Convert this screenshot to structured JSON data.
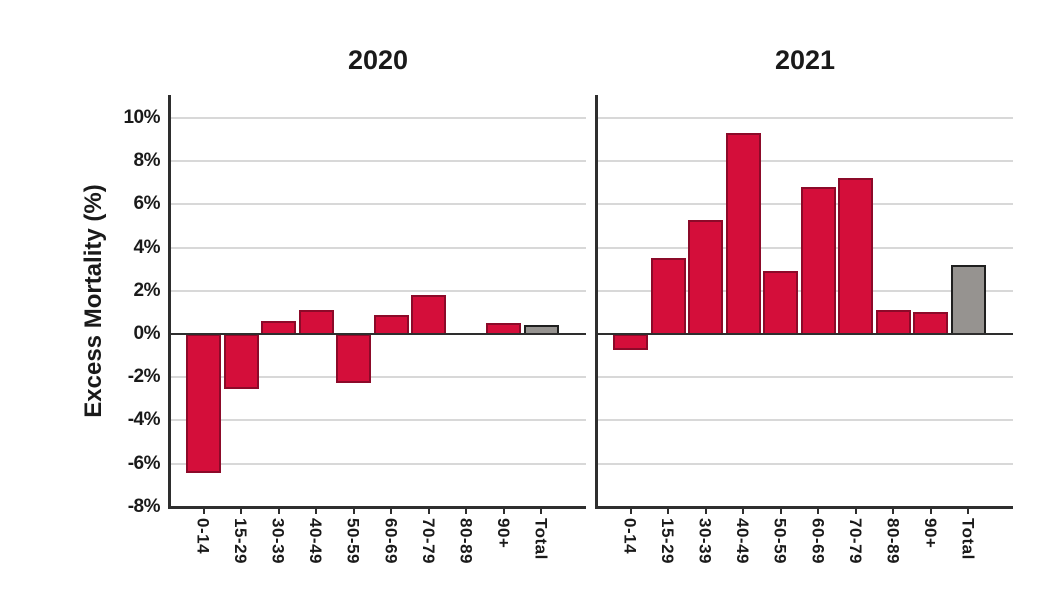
{
  "ylabel": "Excess Mortality (%)",
  "colors": {
    "background": "#ffffff",
    "bar_red": "#d40e3a",
    "bar_red_border": "#8c0a29",
    "bar_gray": "#969390",
    "bar_gray_border": "#1f1f1f",
    "gridline": "#d8d8d8",
    "axis": "#2e2e2e",
    "text": "#1a1a1a"
  },
  "chart_data": [
    {
      "type": "bar",
      "title": "2020",
      "categories": [
        "0-14",
        "15-29",
        "30-39",
        "40-49",
        "50-59",
        "60-69",
        "70-79",
        "80-89",
        "90+",
        "Total"
      ],
      "values": [
        -6.4,
        -2.5,
        0.6,
        1.1,
        -2.2,
        0.9,
        1.8,
        0,
        0.5,
        0.4
      ],
      "bar_roles": [
        "age",
        "age",
        "age",
        "age",
        "age",
        "age",
        "age",
        "age",
        "age",
        "total"
      ],
      "ylabel": "Excess Mortality (%)",
      "ylim": [
        -8,
        10
      ],
      "ytick_values": [
        10,
        8,
        6,
        4,
        2,
        0,
        -2,
        -4,
        -6,
        -8
      ],
      "yticklabels": [
        "10%",
        "8%",
        "6%",
        "4%",
        "2%",
        "0%",
        "-2%",
        "-4%",
        "-6%",
        "-8%"
      ],
      "grid": true,
      "legend": "none"
    },
    {
      "type": "bar",
      "title": "2021",
      "categories": [
        "0-14",
        "15-29",
        "30-39",
        "40-49",
        "50-59",
        "60-69",
        "70-79",
        "80-89",
        "90+",
        "Total"
      ],
      "values": [
        -0.7,
        3.5,
        5.3,
        9.3,
        2.9,
        6.8,
        7.2,
        1.1,
        1.0,
        3.2
      ],
      "bar_roles": [
        "age",
        "age",
        "age",
        "age",
        "age",
        "age",
        "age",
        "age",
        "age",
        "total"
      ],
      "ylabel": "Excess Mortality (%)",
      "ylim": [
        -8,
        10
      ],
      "ytick_values": [
        10,
        8,
        6,
        4,
        2,
        0,
        -2,
        -4,
        -6,
        -8
      ],
      "yticklabels": [
        "10%",
        "8%",
        "6%",
        "4%",
        "2%",
        "0%",
        "-2%",
        "-4%",
        "-6%",
        "-8%"
      ],
      "grid": true,
      "legend": "none"
    }
  ]
}
